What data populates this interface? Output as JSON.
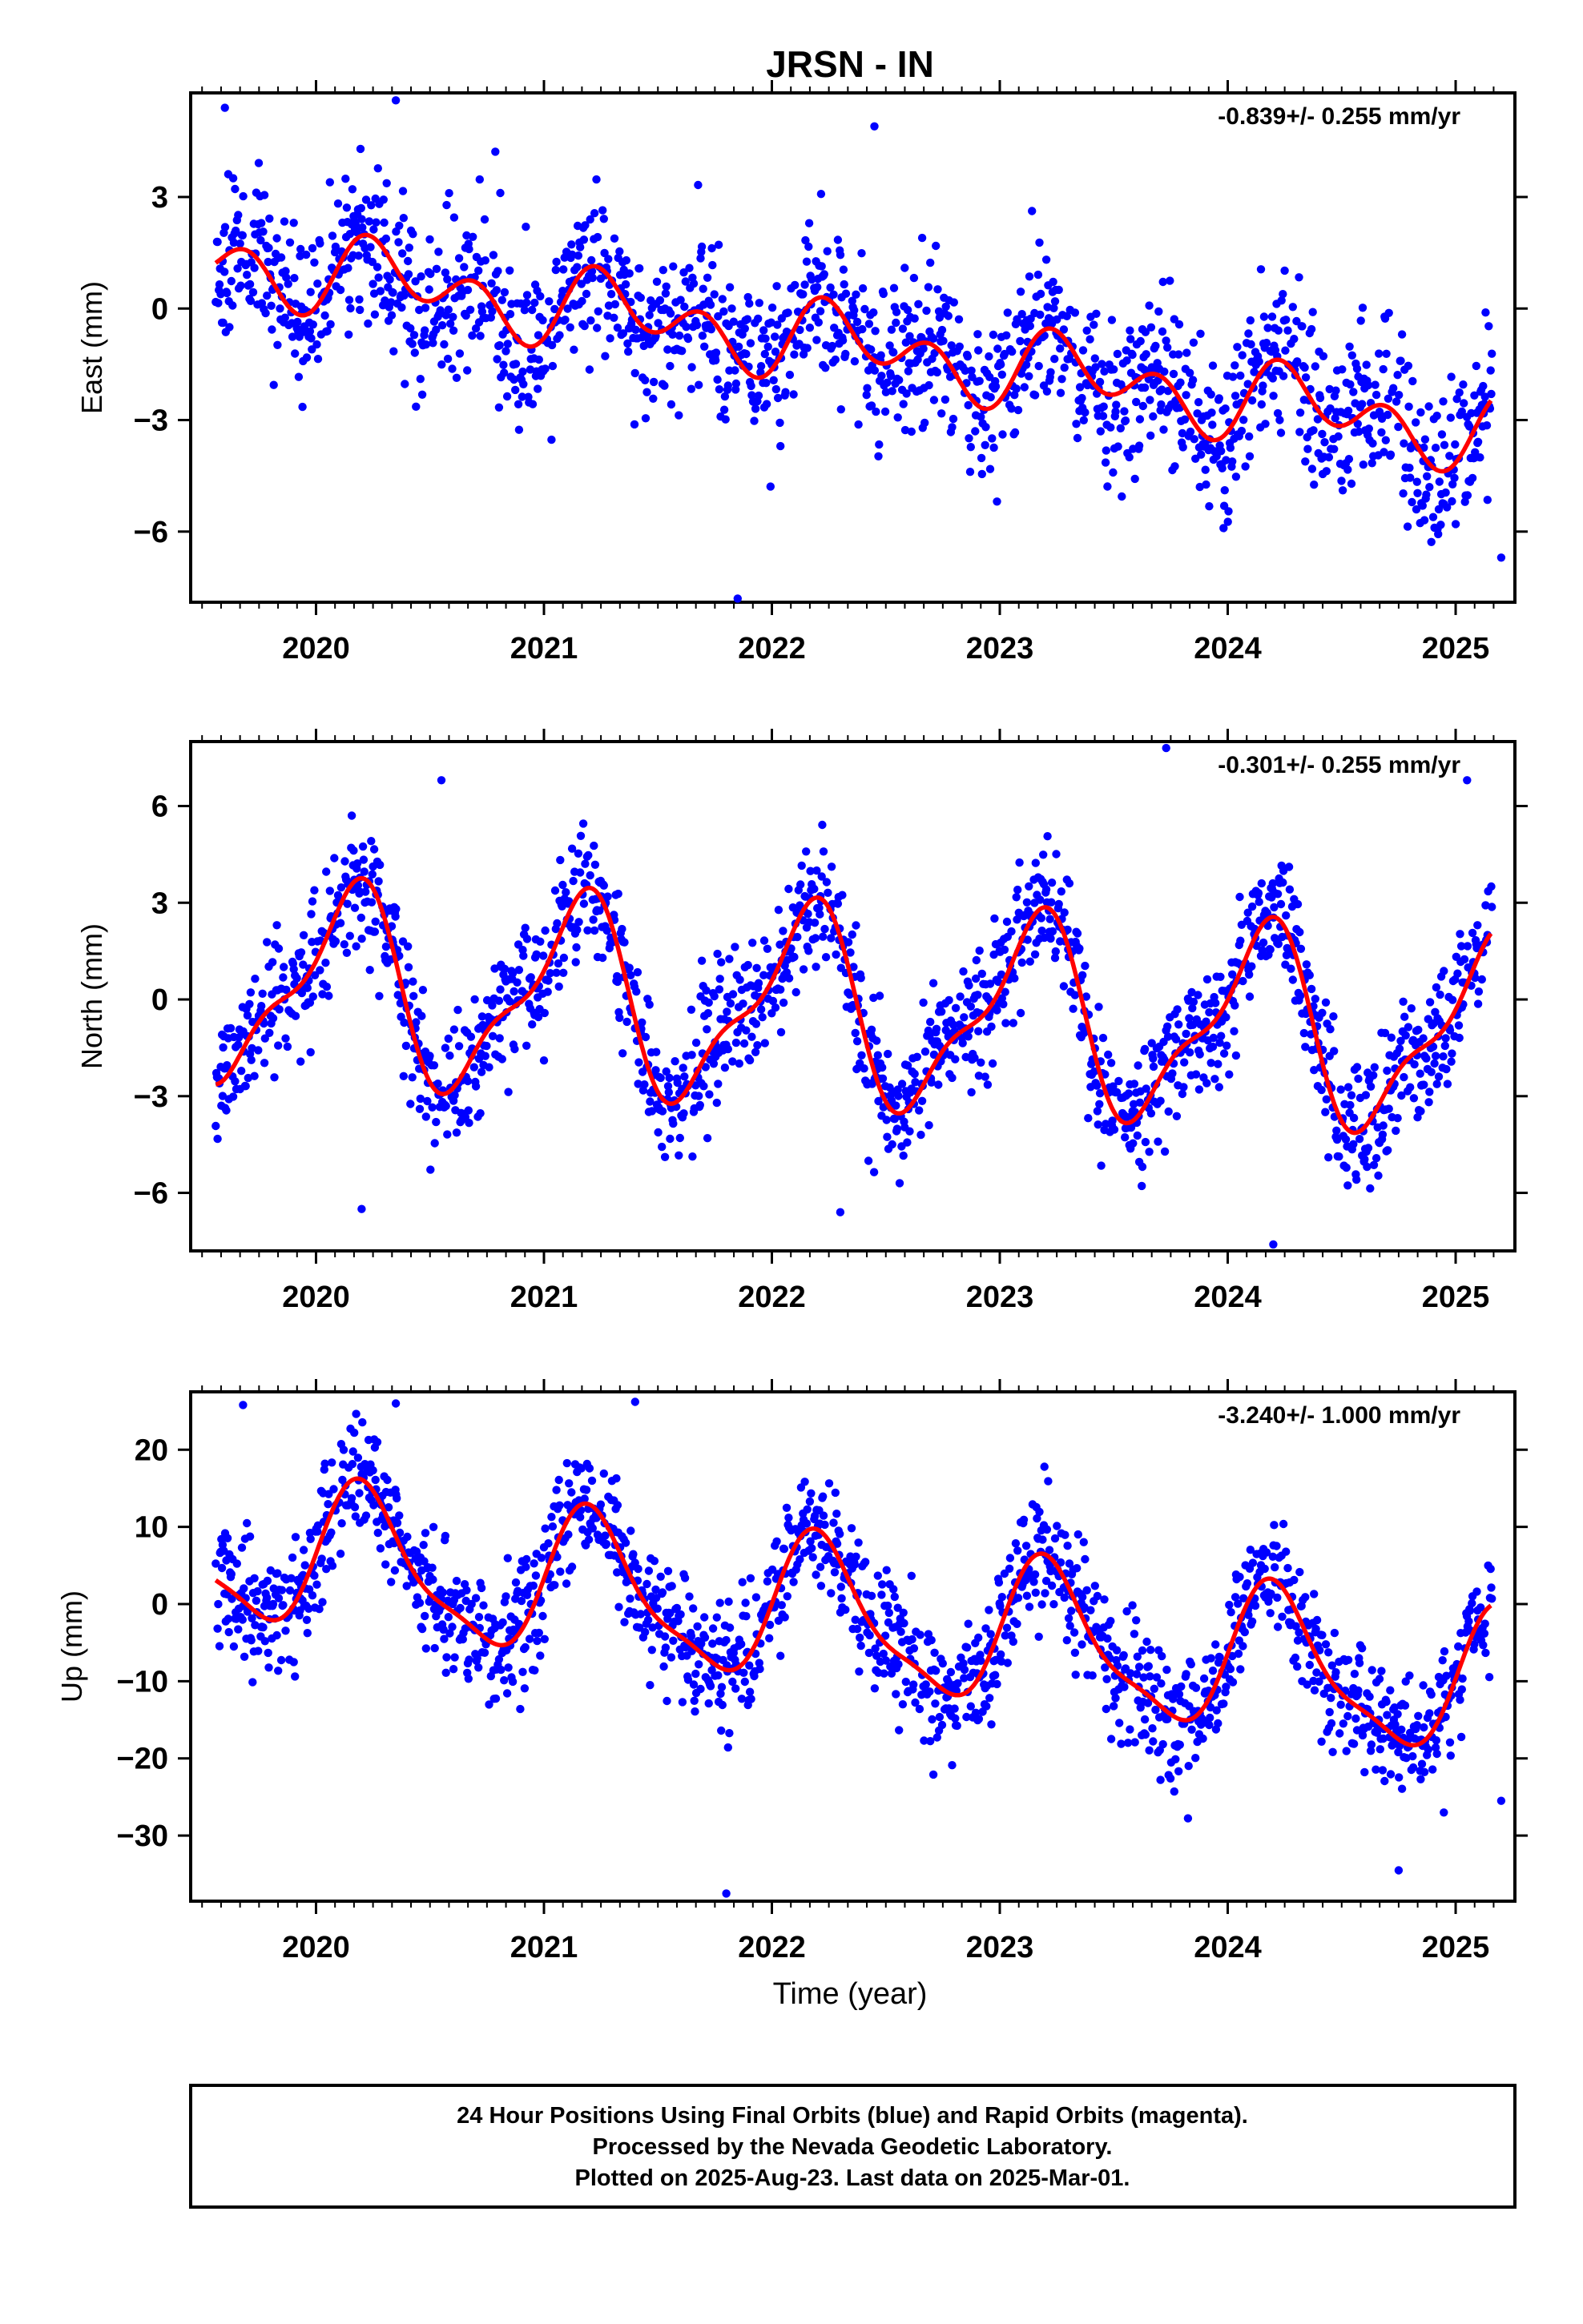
{
  "title": "JRSN - IN",
  "colors": {
    "points": "#0000ff",
    "fit": "#ff0000",
    "axes": "#000000"
  },
  "xaxis": {
    "label": "Time (year)",
    "range": [
      2019.45,
      2025.26
    ],
    "ticks": [
      "2020",
      "2021",
      "2022",
      "2023",
      "2024",
      "2025"
    ]
  },
  "chart_data": [
    {
      "type": "scatter",
      "panel": "east",
      "ylabel": "East (mm)",
      "ylim": [
        -7.9,
        5.8
      ],
      "yticks": [
        "3",
        "0",
        "−3",
        "−6"
      ],
      "rate": "-0.839+/- 0.255 mm/yr",
      "fit": {
        "trend": -0.839,
        "offset": 1.3,
        "ref": 2019.6,
        "annual": 0.6,
        "annual_phase": -0.5,
        "semi": 0.75,
        "semi_phase": -1.0
      },
      "scatter": {
        "sigma": 1.1,
        "seed": 11,
        "outliers": [
          [
            2019.6,
            5.4
          ],
          [
            2020.35,
            5.6
          ],
          [
            2021.85,
            -7.8
          ],
          [
            2025.2,
            -6.7
          ],
          [
            2022.45,
            4.9
          ],
          [
            2019.62,
            -0.5
          ]
        ]
      }
    },
    {
      "type": "scatter",
      "panel": "north",
      "ylabel": "North (mm)",
      "ylim": [
        -7.8,
        8.0
      ],
      "yticks": [
        "6",
        "3",
        "0",
        "−3",
        "−6"
      ],
      "rate": "-0.301+/- 0.255 mm/yr",
      "fit": {
        "trend": -0.301,
        "offset": 0.5,
        "ref": 2019.6,
        "annual": 2.8,
        "annual_phase": 0.7,
        "semi": 1.0,
        "semi_phase": -1.5
      },
      "scatter": {
        "sigma": 1.0,
        "seed": 23,
        "outliers": [
          [
            2023.73,
            7.8
          ],
          [
            2025.05,
            6.8
          ],
          [
            2024.2,
            -7.6
          ],
          [
            2020.2,
            -6.5
          ],
          [
            2022.3,
            -6.6
          ],
          [
            2020.55,
            6.8
          ]
        ]
      }
    },
    {
      "type": "scatter",
      "panel": "up",
      "ylabel": "Up (mm)",
      "ylim": [
        -38.5,
        27.5
      ],
      "yticks": [
        "20",
        "10",
        "0",
        "−10",
        "−20",
        "−30"
      ],
      "rate": "-3.240+/- 1.000 mm/yr",
      "fit": {
        "trend": -3.24,
        "offset": 7.0,
        "ref": 2019.6,
        "annual": 9.0,
        "annual_phase": 0.2,
        "semi": 2.5,
        "semi_phase": -0.4
      },
      "scatter": {
        "sigma": 4.0,
        "seed": 37,
        "outliers": [
          [
            2021.8,
            -37.5
          ],
          [
            2019.68,
            25.8
          ],
          [
            2020.35,
            26.0
          ],
          [
            2021.4,
            26.2
          ],
          [
            2024.75,
            -34.5
          ],
          [
            2025.2,
            -25.5
          ]
        ]
      }
    }
  ],
  "footer": {
    "line1": "24 Hour Positions Using Final Orbits (blue) and Rapid Orbits (magenta).",
    "line2": "Processed by the Nevada Geodetic Laboratory.",
    "line3": "Plotted on 2025-Aug-23. Last data on 2025-Mar-01."
  }
}
